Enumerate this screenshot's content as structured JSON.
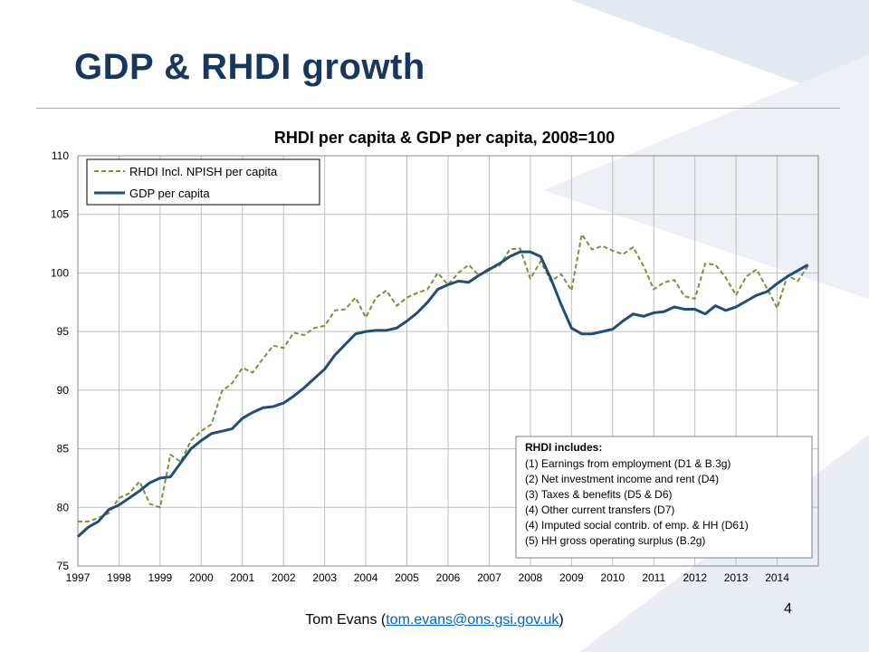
{
  "slide": {
    "title": "GDP & RHDI growth",
    "footer_prefix": "Tom Evans (",
    "footer_email": "tom.evans@ons.gsi.gov.uk",
    "footer_suffix": ")",
    "page_number": "4",
    "title_color": "#17375e",
    "rule_color": "#9bbb59"
  },
  "chart_data": {
    "type": "line",
    "title": "RHDI per capita & GDP per capita, 2008=100",
    "xlabel": "",
    "ylabel": "",
    "ylim": [
      75,
      110
    ],
    "yticks": [
      75,
      80,
      85,
      90,
      95,
      100,
      105,
      110
    ],
    "xticks": [
      "1997",
      "1998",
      "1999",
      "2000",
      "2001",
      "2002",
      "2003",
      "2004",
      "2005",
      "2006",
      "2007",
      "2008",
      "2009",
      "2010",
      "2011",
      "2012",
      "2013",
      "2014"
    ],
    "x_start": 1997.0,
    "x_step": 0.25,
    "grid": true,
    "legend_position": "top-left",
    "series": [
      {
        "name": "RHDI Incl. NPISH per capita",
        "color": "#77933c",
        "style": "dashed",
        "values": [
          78.8,
          78.8,
          79.1,
          79.5,
          80.8,
          81.2,
          82.2,
          80.3,
          80.0,
          84.5,
          83.9,
          85.7,
          86.5,
          87.1,
          89.9,
          90.6,
          91.9,
          91.5,
          92.7,
          93.8,
          93.6,
          94.9,
          94.7,
          95.3,
          95.5,
          96.8,
          96.9,
          97.9,
          96.2,
          97.9,
          98.5,
          97.2,
          97.9,
          98.3,
          98.6,
          100.0,
          99.0,
          100.0,
          100.7,
          99.8,
          100.4,
          100.6,
          102.0,
          102.1,
          99.5,
          101.0,
          99.3,
          99.9,
          98.5,
          103.3,
          102.0,
          102.3,
          101.9,
          101.6,
          102.2,
          100.6,
          98.6,
          99.2,
          99.4,
          98.0,
          97.8,
          100.8,
          100.7,
          99.6,
          98.1,
          99.7,
          100.3,
          98.7,
          97.0,
          99.8,
          99.3,
          100.6
        ]
      },
      {
        "name": "GDP per capita",
        "color": "#1f4e79",
        "style": "solid",
        "values": [
          77.5,
          78.3,
          78.8,
          79.8,
          80.2,
          80.8,
          81.4,
          82.1,
          82.5,
          82.6,
          83.8,
          85.0,
          85.7,
          86.3,
          86.5,
          86.7,
          87.6,
          88.1,
          88.5,
          88.6,
          88.9,
          89.5,
          90.2,
          91.0,
          91.8,
          93.0,
          93.9,
          94.8,
          95.0,
          95.1,
          95.1,
          95.3,
          95.9,
          96.6,
          97.5,
          98.6,
          99.0,
          99.3,
          99.2,
          99.8,
          100.3,
          100.8,
          101.4,
          101.8,
          101.8,
          101.4,
          99.5,
          97.3,
          95.3,
          94.8,
          94.8,
          95.0,
          95.2,
          95.9,
          96.5,
          96.3,
          96.6,
          96.7,
          97.1,
          96.9,
          96.9,
          96.5,
          97.2,
          96.8,
          97.1,
          97.6,
          98.1,
          98.4,
          99.1,
          99.7,
          100.2,
          100.7
        ]
      }
    ],
    "annotation": {
      "heading": "RHDI includes:",
      "lines": [
        "(1) Earnings from employment (D1 & B.3g)",
        "(2) Net investment income and rent (D4)",
        "(3) Taxes & benefits (D5 & D6)",
        "(4) Other current transfers (D7)",
        "(4) Imputed social contrib. of emp. & HH (D61)",
        "(5) HH gross operating surplus (B.2g)"
      ]
    }
  }
}
